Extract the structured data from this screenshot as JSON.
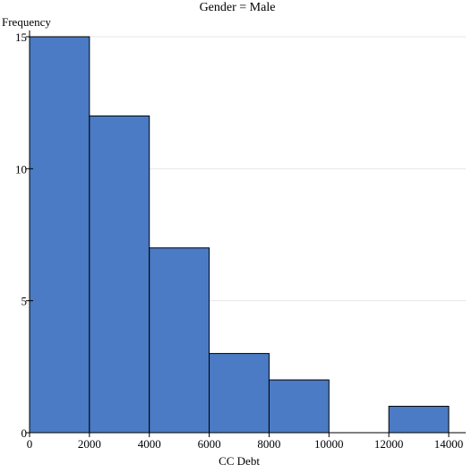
{
  "chart_data": {
    "type": "histogram",
    "title": "Gender = Male",
    "xlabel": "CC Debt",
    "ylabel": "Frequency",
    "xlim": [
      0,
      14000
    ],
    "ylim": [
      0,
      15
    ],
    "x_ticks": [
      0,
      2000,
      4000,
      6000,
      8000,
      10000,
      12000,
      14000
    ],
    "y_ticks": [
      0,
      5,
      10,
      15
    ],
    "grid": true,
    "bar_color": "#4a7bc4",
    "bins": [
      {
        "start": 0,
        "end": 2000,
        "count": 15
      },
      {
        "start": 2000,
        "end": 4000,
        "count": 12
      },
      {
        "start": 4000,
        "end": 6000,
        "count": 7
      },
      {
        "start": 6000,
        "end": 8000,
        "count": 3
      },
      {
        "start": 8000,
        "end": 10000,
        "count": 2
      },
      {
        "start": 10000,
        "end": 12000,
        "count": 0
      },
      {
        "start": 12000,
        "end": 14000,
        "count": 1
      }
    ]
  }
}
